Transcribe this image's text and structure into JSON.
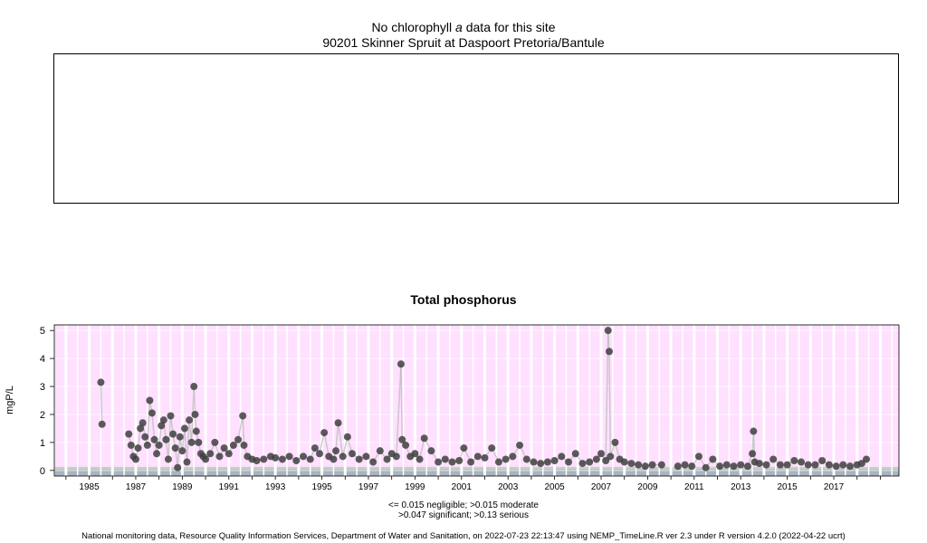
{
  "header": {
    "line1_prefix": "No chlorophyll ",
    "line1_italic": "a",
    "line1_suffix": " data for this site",
    "line2": "90201 Skinner Spruit at Daspoort Pretoria/Bantule"
  },
  "chart_data": [
    {
      "type": "scatter",
      "title": "No chlorophyll a data for this site",
      "subtitle": "90201 Skinner Spruit at Daspoort Pretoria/Bantule",
      "series": []
    },
    {
      "type": "scatter",
      "title": "Total phosphorus",
      "ylabel": "mgP/L",
      "xlabel": "",
      "xlim": [
        1983.5,
        2019.8
      ],
      "ylim": [
        -0.2,
        5.2
      ],
      "yticks": [
        "0",
        "1",
        "2",
        "3",
        "4",
        "5"
      ],
      "xticks": [
        "1985",
        "1987",
        "1989",
        "1991",
        "1993",
        "1995",
        "1997",
        "1999",
        "2001",
        "2003",
        "2005",
        "2007",
        "2009",
        "2011",
        "2013",
        "2015",
        "2017"
      ],
      "grid": true,
      "thresholds": [
        {
          "label": "negligible",
          "value": 0.015
        },
        {
          "label": "moderate",
          "value": 0.015
        },
        {
          "label": "significant",
          "value": 0.047
        },
        {
          "label": "serious",
          "value": 0.13
        }
      ],
      "colors": {
        "points": "#404040",
        "serious_band": "#ffe0ff",
        "significant_band": "#c8d0c8",
        "moderate_band": "#a8b4c0",
        "grid": "#ffffff"
      },
      "series": [
        {
          "x": [
            1985.5,
            1985.55,
            1986.7,
            1986.8,
            1986.9,
            1987.0,
            1987.1,
            1987.2,
            1987.3,
            1987.4,
            1987.5,
            1987.6,
            1987.7,
            1987.8,
            1987.9,
            1988.0,
            1988.1,
            1988.2,
            1988.3,
            1988.4,
            1988.5,
            1988.6,
            1988.7,
            1988.8,
            1988.9,
            1989.0,
            1989.1,
            1989.2,
            1989.3,
            1989.4,
            1989.5,
            1989.55,
            1989.6,
            1989.7,
            1989.8,
            1989.9,
            1990.0,
            1990.2,
            1990.4,
            1990.6,
            1990.8,
            1991.0,
            1991.2,
            1991.4,
            1991.6,
            1991.65,
            1991.8,
            1992.0,
            1992.2,
            1992.5,
            1992.8,
            1993.0,
            1993.3,
            1993.6,
            1993.9,
            1994.2,
            1994.5,
            1994.7,
            1994.9,
            1995.1,
            1995.3,
            1995.5,
            1995.6,
            1995.7,
            1995.9,
            1996.1,
            1996.3,
            1996.6,
            1996.9,
            1997.2,
            1997.5,
            1997.8,
            1998.0,
            1998.2,
            1998.4,
            1998.45,
            1998.6,
            1998.8,
            1999.0,
            1999.2,
            1999.4,
            1999.7,
            2000.0,
            2000.3,
            2000.6,
            2000.9,
            2001.1,
            2001.4,
            2001.7,
            2002.0,
            2002.3,
            2002.6,
            2002.9,
            2003.2,
            2003.5,
            2003.8,
            2004.1,
            2004.4,
            2004.7,
            2005.0,
            2005.3,
            2005.6,
            2005.9,
            2006.2,
            2006.5,
            2006.8,
            2007.0,
            2007.2,
            2007.3,
            2007.35,
            2007.4,
            2007.6,
            2007.8,
            2008.0,
            2008.3,
            2008.6,
            2008.9,
            2009.2,
            2009.6,
            2010.3,
            2010.6,
            2010.9,
            2011.2,
            2011.5,
            2011.8,
            2012.1,
            2012.4,
            2012.7,
            2013.0,
            2013.3,
            2013.5,
            2013.55,
            2013.6,
            2013.8,
            2014.1,
            2014.4,
            2014.7,
            2015.0,
            2015.3,
            2015.6,
            2015.9,
            2016.2,
            2016.5,
            2016.8,
            2017.1,
            2017.4,
            2017.7,
            2018.0,
            2018.2,
            2018.4
          ],
          "y": [
            3.15,
            1.65,
            1.3,
            0.9,
            0.5,
            0.4,
            0.8,
            1.5,
            1.7,
            1.2,
            0.9,
            2.5,
            2.05,
            1.1,
            0.6,
            0.9,
            1.6,
            1.8,
            1.1,
            0.4,
            1.95,
            1.3,
            0.8,
            0.1,
            1.2,
            0.7,
            1.5,
            0.3,
            1.8,
            1.0,
            3.0,
            2.0,
            1.4,
            1.0,
            0.6,
            0.5,
            0.4,
            0.6,
            1.0,
            0.5,
            0.8,
            0.6,
            0.9,
            1.1,
            1.95,
            0.9,
            0.5,
            0.4,
            0.35,
            0.4,
            0.5,
            0.45,
            0.4,
            0.5,
            0.35,
            0.5,
            0.4,
            0.8,
            0.6,
            1.35,
            0.5,
            0.4,
            0.7,
            1.7,
            0.5,
            1.2,
            0.6,
            0.4,
            0.5,
            0.3,
            0.7,
            0.4,
            0.6,
            0.5,
            3.8,
            1.1,
            0.9,
            0.5,
            0.6,
            0.4,
            1.15,
            0.7,
            0.3,
            0.4,
            0.3,
            0.35,
            0.8,
            0.3,
            0.5,
            0.45,
            0.8,
            0.3,
            0.4,
            0.5,
            0.9,
            0.4,
            0.3,
            0.25,
            0.3,
            0.35,
            0.5,
            0.3,
            0.6,
            0.25,
            0.3,
            0.4,
            0.6,
            0.35,
            5.0,
            4.25,
            0.5,
            1.0,
            0.4,
            0.3,
            0.25,
            0.2,
            0.15,
            0.2,
            0.2,
            0.15,
            0.2,
            0.15,
            0.5,
            0.1,
            0.4,
            0.15,
            0.2,
            0.15,
            0.2,
            0.15,
            0.6,
            1.4,
            0.3,
            0.25,
            0.2,
            0.4,
            0.2,
            0.2,
            0.35,
            0.3,
            0.2,
            0.2,
            0.35,
            0.2,
            0.15,
            0.2,
            0.15,
            0.2,
            0.25,
            0.4
          ]
        }
      ]
    }
  ],
  "plot2": {
    "title": "Total phosphorus",
    "ylabel": "mgP/L"
  },
  "legend": {
    "line1": "<= 0.015 negligible; >0.015 moderate",
    "line2": ">0.047 significant; >0.13 serious"
  },
  "footer": "National monitoring data, Resource Quality Information Services, Department of Water and Sanitation, on 2022-07-23 22:13:47 using NEMP_TimeLine.R ver 2.3 under R version 4.2.0 (2022-04-22 ucrt)"
}
